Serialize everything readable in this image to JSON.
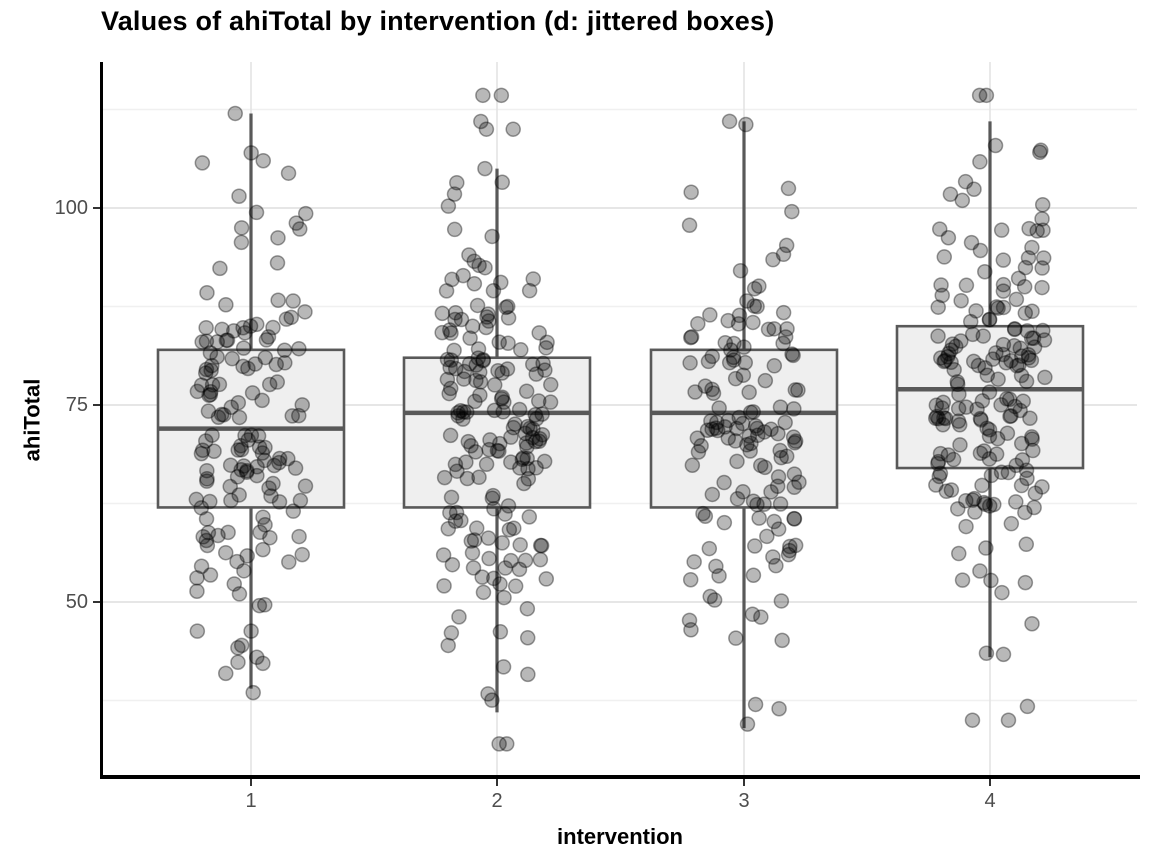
{
  "chart_data": {
    "type": "boxplot-jitter",
    "title": "Values of ahiTotal by intervention (d: jittered boxes)",
    "xlabel": "intervention",
    "ylabel": "ahiTotal",
    "categories": [
      "1",
      "2",
      "3",
      "4"
    ],
    "y_ticks": [
      50,
      75,
      100
    ],
    "y_minor_ticks": [
      37.5,
      62.5,
      87.5,
      112.5
    ],
    "ylim": [
      27.5,
      118.5
    ],
    "legend": "none",
    "grid": "major-and-minor-horizontal, major-vertical-at-categories",
    "boxes": [
      {
        "category": "1",
        "whisker_low": 39,
        "q1": 62,
        "median": 72,
        "q3": 82,
        "whisker_high": 112
      },
      {
        "category": "2",
        "whisker_low": 36,
        "q1": 62,
        "median": 74,
        "q3": 81,
        "whisker_high": 105
      },
      {
        "category": "3",
        "whisker_low": 34,
        "q1": 62,
        "median": 74,
        "q3": 82,
        "whisker_high": 111
      },
      {
        "category": "4",
        "whisker_low": 43,
        "q1": 67,
        "median": 77,
        "q3": 85,
        "whisker_high": 111
      }
    ],
    "jitter_points": {
      "note": "hundreds of semi-transparent jittered observations per group; cloud approximated from box stats",
      "n_points": [
        150,
        180,
        140,
        180
      ],
      "mean": [
        72,
        73,
        73,
        76.5
      ],
      "sd": [
        13.5,
        13.5,
        13.5,
        12.5
      ],
      "value_range": [
        [
          38,
          112
        ],
        [
          31,
          114.5
        ],
        [
          34,
          111.5
        ],
        [
          35,
          114.5
        ]
      ],
      "seeds": [
        11,
        22,
        33,
        44
      ],
      "extreme_values": [
        [
          112,
          107,
          106,
          44.5,
          38.5
        ],
        [
          114.3,
          114.3,
          110,
          110,
          32,
          32,
          105
        ],
        [
          111,
          34.5,
          37
        ],
        [
          114.3,
          114.3,
          35,
          35,
          43.5
        ]
      ]
    },
    "style": {
      "box_fill": "#efefef",
      "box_stroke": "#595959",
      "median_stroke": "#595959",
      "whisker_stroke": "#595959",
      "point_fill": "rgba(0,0,0,0.28)",
      "point_stroke": "rgba(0,0,0,0.38)",
      "grid_major": "#e2e2e2",
      "grid_minor": "#f0f0f0",
      "axis_color": "#000000",
      "tick_label_color": "#4d4d4d"
    }
  }
}
